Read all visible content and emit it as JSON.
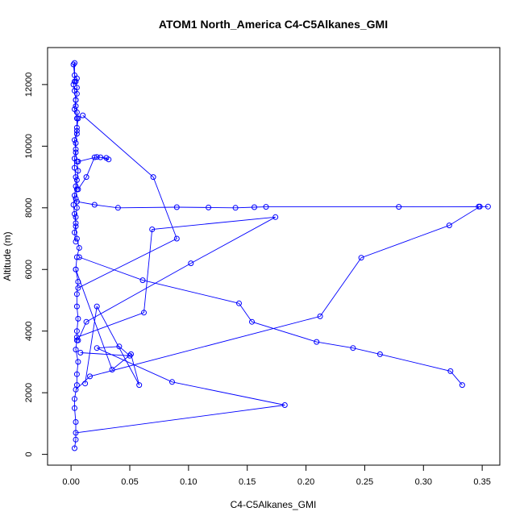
{
  "chart_data": {
    "type": "line",
    "title": "ATOM1 North_America C4-C5Alkanes_GMI",
    "xlabel": "C4-C5Alkanes_GMI",
    "ylabel": "Altitude (m)",
    "xlim": [
      -0.02,
      0.365
    ],
    "ylim": [
      -350,
      13200
    ],
    "x_ticks": [
      0.0,
      0.05,
      0.1,
      0.15,
      0.2,
      0.25,
      0.3,
      0.35
    ],
    "x_tick_labels": [
      "0.00",
      "0.05",
      "0.10",
      "0.15",
      "0.20",
      "0.25",
      "0.30",
      "0.35"
    ],
    "y_ticks": [
      0,
      2000,
      4000,
      6000,
      8000,
      10000,
      12000
    ],
    "y_tick_labels": [
      "0",
      "2000",
      "4000",
      "6000",
      "8000",
      "10000",
      "12000"
    ],
    "grid": false,
    "marker": "open-circle",
    "series_color": "#0000ff",
    "series": [
      {
        "x": [
          0.003,
          0.004,
          0.004,
          0.003,
          0.003,
          0.005,
          0.005,
          0.006,
          0.004,
          0.005,
          0.005,
          0.006,
          0.005,
          0.005,
          0.006,
          0.004,
          0.005,
          0.007,
          0.005,
          0.004,
          0.004,
          0.005,
          0.004,
          0.005,
          0.005,
          0.006,
          0.005,
          0.004,
          0.004,
          0.005,
          0.005,
          0.006,
          0.005,
          0.004,
          0.004,
          0.005,
          0.005,
          0.004,
          0.005,
          0.003,
          0.002,
          0.003,
          0.003,
          0.002,
          0.003,
          0.004,
          0.003,
          0.005,
          0.005,
          0.003,
          0.004,
          0.003,
          0.003,
          0.004,
          0.004,
          0.003,
          0.002,
          0.003,
          0.004,
          0.003,
          0.004
        ],
        "y": [
          200,
          480,
          1050,
          1500,
          1800,
          2250,
          2600,
          3000,
          3400,
          3700,
          4000,
          4400,
          4800,
          5200,
          5600,
          6000,
          6400,
          6700,
          7000,
          7400,
          7700,
          8000,
          8300,
          8600,
          8900,
          9200,
          9500,
          9800,
          10100,
          10400,
          10600,
          10900,
          11100,
          11300,
          11500,
          11700,
          11900,
          12100,
          12200,
          12300,
          12650,
          12700,
          12100,
          12000,
          11800,
          11500,
          11200,
          10900,
          10500,
          10200,
          9900,
          9600,
          9300,
          9000,
          8700,
          8400,
          8100,
          7800,
          7500,
          7200,
          6900
        ]
      },
      {
        "x": [
          0.01,
          0.07,
          0.09,
          0.006
        ],
        "y": [
          11000,
          9000,
          7000,
          5400
        ]
      },
      {
        "x": [
          0.005,
          0.02,
          0.04,
          0.09,
          0.117,
          0.14,
          0.156,
          0.166,
          0.279,
          0.347,
          0.355,
          0.348,
          0.322,
          0.247,
          0.212,
          0.016,
          0.004
        ],
        "y": [
          8200,
          8100,
          8000,
          8020,
          8010,
          8000,
          8020,
          8030,
          8030,
          8040,
          8040,
          8040,
          7430,
          6380,
          4480,
          2530,
          2100
        ]
      },
      {
        "x": [
          0.006,
          0.022,
          0.03,
          0.032,
          0.025,
          0.02,
          0.013,
          0.006
        ],
        "y": [
          9500,
          9650,
          9620,
          9570,
          9640,
          9640,
          9000,
          8600
        ]
      },
      {
        "x": [
          0.005,
          0.062,
          0.069,
          0.174,
          0.102,
          0.013,
          0.006
        ],
        "y": [
          3800,
          4600,
          7300,
          7700,
          6200,
          4300,
          3700
        ]
      },
      {
        "x": [
          0.007,
          0.061,
          0.143,
          0.154,
          0.209,
          0.24,
          0.263,
          0.323,
          0.333
        ],
        "y": [
          6400,
          5650,
          4900,
          4300,
          3650,
          3450,
          3250,
          2700,
          2250
        ]
      },
      {
        "x": [
          0.004,
          0.035,
          0.051,
          0.058,
          0.022,
          0.012
        ],
        "y": [
          6000,
          2750,
          3250,
          2250,
          4800,
          2300
        ]
      },
      {
        "x": [
          0.008,
          0.05,
          0.041,
          0.022,
          0.086,
          0.182,
          0.004
        ],
        "y": [
          3300,
          3200,
          3500,
          3450,
          2350,
          1600,
          700
        ]
      }
    ]
  }
}
